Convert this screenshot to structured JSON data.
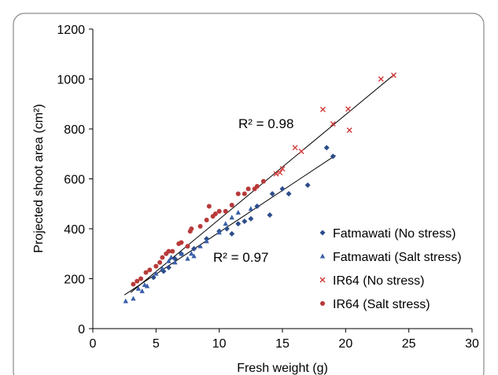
{
  "chart_data": {
    "type": "scatter",
    "xlabel": "Fresh weight (g)",
    "ylabel": "Projected shoot area (cm²)",
    "xlim": [
      0,
      30
    ],
    "ylim": [
      0,
      1200
    ],
    "xticks": [
      0,
      5,
      10,
      15,
      20,
      25,
      30
    ],
    "yticks": [
      0,
      200,
      400,
      600,
      800,
      1000,
      1200
    ],
    "grid": false,
    "legend_position": "lower-right",
    "series": [
      {
        "name": "Fatmawati (No stress)",
        "marker": "diamond",
        "color": "#2c4d8a",
        "points": [
          [
            4.8,
            205
          ],
          [
            5.6,
            230
          ],
          [
            6.0,
            245
          ],
          [
            6.5,
            280
          ],
          [
            7.0,
            300
          ],
          [
            8.0,
            320
          ],
          [
            9.0,
            360
          ],
          [
            10.0,
            390
          ],
          [
            10.6,
            400
          ],
          [
            11.0,
            380
          ],
          [
            11.5,
            420
          ],
          [
            12.0,
            430
          ],
          [
            12.5,
            440
          ],
          [
            13.0,
            490
          ],
          [
            14.0,
            455
          ],
          [
            14.2,
            540
          ],
          [
            15.0,
            560
          ],
          [
            15.5,
            540
          ],
          [
            17.0,
            575
          ],
          [
            18.5,
            725
          ],
          [
            19.0,
            690
          ]
        ]
      },
      {
        "name": "Fatmawati (Salt stress)",
        "marker": "triangle",
        "color": "#3a5fa8",
        "points": [
          [
            2.6,
            110
          ],
          [
            3.2,
            120
          ],
          [
            3.6,
            160
          ],
          [
            3.9,
            150
          ],
          [
            4.1,
            175
          ],
          [
            4.3,
            170
          ],
          [
            5.0,
            220
          ],
          [
            5.5,
            240
          ],
          [
            6.0,
            270
          ],
          [
            6.2,
            285
          ],
          [
            6.5,
            265
          ],
          [
            7.0,
            300
          ],
          [
            7.5,
            280
          ],
          [
            7.8,
            300
          ],
          [
            8.0,
            290
          ],
          [
            8.5,
            330
          ],
          [
            9.0,
            350
          ],
          [
            10.0,
            385
          ],
          [
            10.5,
            420
          ],
          [
            11.0,
            445
          ],
          [
            11.5,
            465
          ],
          [
            12.5,
            480
          ]
        ]
      },
      {
        "name": "IR64 (No stress)",
        "marker": "x",
        "color": "#d23a3a",
        "points": [
          [
            14.5,
            620
          ],
          [
            14.8,
            625
          ],
          [
            15.0,
            640
          ],
          [
            16.0,
            725
          ],
          [
            16.5,
            710
          ],
          [
            18.2,
            878
          ],
          [
            19.0,
            820
          ],
          [
            20.2,
            880
          ],
          [
            20.3,
            795
          ],
          [
            22.8,
            1000
          ],
          [
            23.8,
            1015
          ]
        ]
      },
      {
        "name": "IR64 (Salt stress)",
        "marker": "circle",
        "color": "#b83a3a",
        "points": [
          [
            3.2,
            178
          ],
          [
            3.5,
            190
          ],
          [
            3.8,
            200
          ],
          [
            4.2,
            225
          ],
          [
            4.5,
            235
          ],
          [
            5.0,
            250
          ],
          [
            5.3,
            265
          ],
          [
            5.5,
            285
          ],
          [
            5.8,
            300
          ],
          [
            6.0,
            310
          ],
          [
            6.3,
            310
          ],
          [
            6.8,
            340
          ],
          [
            7.0,
            345
          ],
          [
            7.5,
            330
          ],
          [
            7.7,
            390
          ],
          [
            7.8,
            400
          ],
          [
            8.5,
            410
          ],
          [
            9.0,
            435
          ],
          [
            9.2,
            490
          ],
          [
            9.5,
            450
          ],
          [
            9.7,
            460
          ],
          [
            10.0,
            470
          ],
          [
            10.5,
            470
          ],
          [
            11.0,
            495
          ],
          [
            11.5,
            540
          ],
          [
            12.0,
            540
          ],
          [
            12.3,
            560
          ],
          [
            12.8,
            560
          ],
          [
            13.0,
            570
          ],
          [
            13.5,
            590
          ]
        ]
      }
    ],
    "trendlines": [
      {
        "series": "IR64",
        "slope": 41.9,
        "intercept": 19,
        "x_range": [
          3.0,
          24.0
        ],
        "label": "R² = 0.98"
      },
      {
        "series": "Fatmawati",
        "slope": 33.5,
        "intercept": 51,
        "x_range": [
          2.5,
          19.2
        ],
        "label": "R² = 0.97"
      }
    ]
  }
}
